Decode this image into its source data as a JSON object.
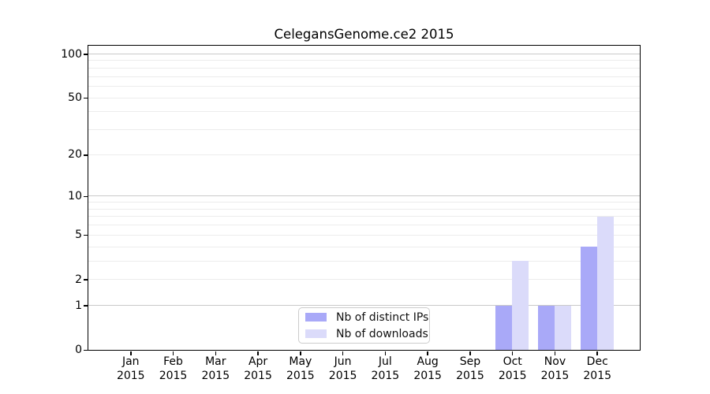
{
  "chart_data": {
    "type": "bar",
    "title": "CelegansGenome.ce2 2015",
    "categories": [
      "Jan 2015",
      "Feb 2015",
      "Mar 2015",
      "Apr 2015",
      "May 2015",
      "Jun 2015",
      "Jul 2015",
      "Aug 2015",
      "Sep 2015",
      "Oct 2015",
      "Nov 2015",
      "Dec 2015"
    ],
    "series": [
      {
        "name": "Nb of distinct IPs",
        "color": "#a9a9f8",
        "values": [
          0,
          0,
          0,
          0,
          0,
          0,
          0,
          0,
          0,
          1,
          1,
          4
        ]
      },
      {
        "name": "Nb of downloads",
        "color": "#dbdbfa",
        "values": [
          0,
          0,
          0,
          0,
          0,
          0,
          0,
          0,
          0,
          3,
          1,
          7
        ]
      }
    ],
    "yscale": "log1p",
    "ytick_values": [
      0,
      1,
      2,
      5,
      10,
      20,
      50,
      100
    ],
    "ytick_labels": [
      "0",
      "1",
      "2",
      "5",
      "10",
      "20",
      "50",
      "100"
    ],
    "minor_grid_values": [
      2,
      3,
      4,
      5,
      6,
      7,
      8,
      9,
      20,
      30,
      40,
      50,
      60,
      70,
      80,
      90
    ],
    "major_grid_values": [
      1,
      10,
      100
    ],
    "ylim_top": 115,
    "grid": true,
    "legend_position": "lower-center-inside",
    "colors": {
      "grid_minor": "#ececec",
      "grid_major": "#c9c9c9",
      "axis": "#000000",
      "background": "#ffffff"
    }
  }
}
